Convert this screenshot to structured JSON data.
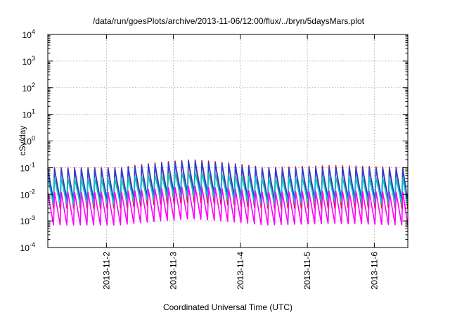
{
  "chart_data": {
    "type": "line",
    "title": "/data/run/goesPlots/archive/2013-11-06/12:00/flux/../bryn/5daysMars.plot",
    "xlabel": "Coordinated Universal Time (UTC)",
    "ylabel": "cSv/day",
    "yscale": "log",
    "ylim": [
      0.0001,
      10000
    ],
    "xlim": [
      "2013-11-01 03:00",
      "2013-11-06 12:00"
    ],
    "grid": true,
    "ytick_labels": [
      {
        "base": "10",
        "exp": "-4",
        "value": 0.0001
      },
      {
        "base": "10",
        "exp": "-3",
        "value": 0.001
      },
      {
        "base": "10",
        "exp": "-2",
        "value": 0.01
      },
      {
        "base": "10",
        "exp": "-1",
        "value": 0.1
      },
      {
        "base": "10",
        "exp": "0",
        "value": 1
      },
      {
        "base": "10",
        "exp": "1",
        "value": 10
      },
      {
        "base": "10",
        "exp": "2",
        "value": 100
      },
      {
        "base": "10",
        "exp": "3",
        "value": 1000
      },
      {
        "base": "10",
        "exp": "4",
        "value": 10000
      }
    ],
    "xtick_labels": [
      {
        "label": "2013-11-2",
        "value": "2013-11-02 00:00"
      },
      {
        "label": "2013-11-3",
        "value": "2013-11-03 00:00"
      },
      {
        "label": "2013-11-4",
        "value": "2013-11-04 00:00"
      },
      {
        "label": "2013-11-5",
        "value": "2013-11-05 00:00"
      },
      {
        "label": "2013-11-6",
        "value": "2013-11-06 00:00"
      }
    ],
    "sawtooth_period_hours": 2.4,
    "series": [
      {
        "color": "#e41a1c",
        "peak": [
          0.1,
          0.1,
          0.2,
          0.1,
          0.12,
          0.1
        ],
        "trough": [
          0.003,
          0.003,
          0.005,
          0.003,
          0.003,
          0.003
        ]
      },
      {
        "color": "#1f3fd8",
        "peak": [
          0.09,
          0.09,
          0.18,
          0.09,
          0.1,
          0.09
        ],
        "trough": [
          0.006,
          0.006,
          0.012,
          0.006,
          0.007,
          0.006
        ]
      },
      {
        "color": "#00c8c8",
        "peak": [
          0.04,
          0.04,
          0.07,
          0.04,
          0.045,
          0.04
        ],
        "trough": [
          0.004,
          0.004,
          0.008,
          0.004,
          0.005,
          0.004
        ]
      },
      {
        "color": "#ff00ff",
        "peak": [
          0.012,
          0.012,
          0.02,
          0.012,
          0.013,
          0.012
        ],
        "trough": [
          0.0007,
          0.0007,
          0.0012,
          0.0007,
          0.0008,
          0.0007
        ]
      }
    ]
  }
}
